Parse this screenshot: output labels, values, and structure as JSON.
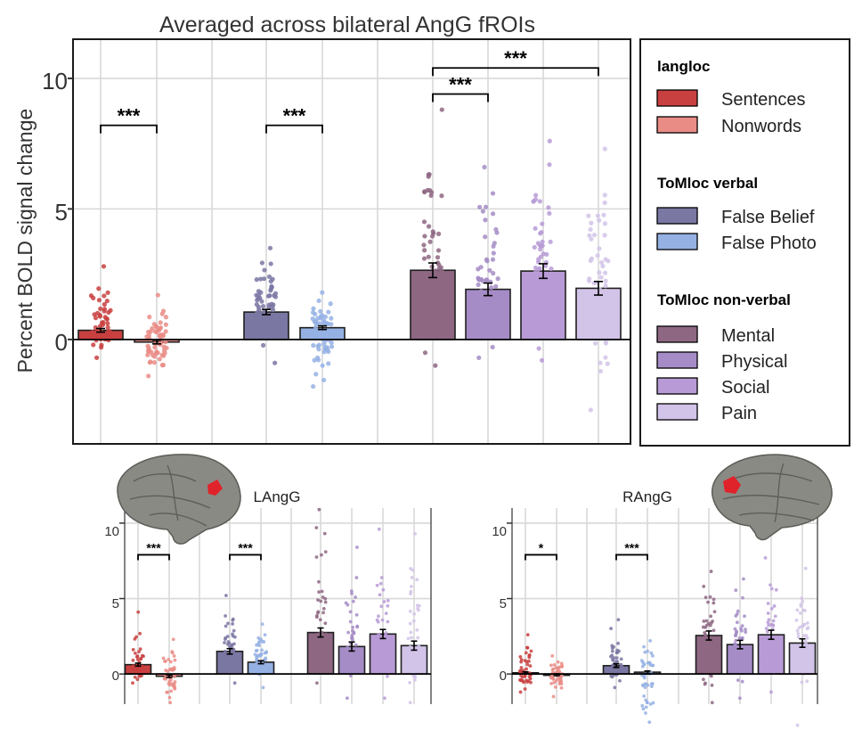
{
  "colors": {
    "Sentences": "#c94040",
    "Nonwords": "#ea8c86",
    "False Belief": "#7a77a3",
    "False Photo": "#95b1e4",
    "Mental": "#8e6783",
    "Physical": "#a58cc6",
    "Social": "#b89bd6",
    "Pain": "#d2c3e8"
  },
  "chart_data": [
    {
      "id": "main",
      "type": "bar",
      "title": "Averaged across bilateral AngG fROIs",
      "ylabel": "Percent BOLD signal change",
      "yticks": [
        "0",
        "5",
        "10"
      ],
      "ylim": [
        -4,
        11.5
      ],
      "categories": [
        "Sentences",
        "Nonwords",
        "False Belief",
        "False Photo",
        "Mental",
        "Physical",
        "Social",
        "Pain"
      ],
      "values": [
        0.35,
        -0.1,
        1.05,
        0.45,
        2.65,
        1.92,
        2.62,
        1.96
      ],
      "errors": [
        0.07,
        0.07,
        0.1,
        0.07,
        0.28,
        0.24,
        0.28,
        0.26
      ],
      "point_ranges": [
        [
          -0.7,
          2.8
        ],
        [
          -1.4,
          1.7
        ],
        [
          -0.9,
          3.5
        ],
        [
          -1.8,
          1.8
        ],
        [
          -1.0,
          8.8
        ],
        [
          -0.7,
          6.6
        ],
        [
          -0.8,
          7.6
        ],
        [
          -2.7,
          7.3
        ]
      ],
      "significance": [
        {
          "from": 0,
          "to": 1,
          "label": "***",
          "y": 8.2
        },
        {
          "from": 2,
          "to": 3,
          "label": "***",
          "y": 8.2
        },
        {
          "from": 4,
          "to": 5,
          "label": "***",
          "y": 9.4
        },
        {
          "from": 4,
          "to": 7,
          "label": "***",
          "y": 10.4
        }
      ],
      "grid": true
    },
    {
      "id": "left",
      "type": "bar",
      "title": "LAngG",
      "yticks": [
        "0",
        "5",
        "10"
      ],
      "ylim": [
        -2,
        11
      ],
      "categories": [
        "Sentences",
        "Nonwords",
        "False Belief",
        "False Photo",
        "Mental",
        "Physical",
        "Social",
        "Pain"
      ],
      "values": [
        0.62,
        -0.15,
        1.5,
        0.78,
        2.75,
        1.82,
        2.65,
        1.88
      ],
      "errors": [
        0.1,
        0.08,
        0.18,
        0.1,
        0.3,
        0.3,
        0.3,
        0.3
      ],
      "point_ranges": [
        [
          -0.6,
          4.1
        ],
        [
          -1.9,
          2.3
        ],
        [
          -0.6,
          5.2
        ],
        [
          -0.9,
          3.3
        ],
        [
          -0.6,
          10.9
        ],
        [
          -1.6,
          8.4
        ],
        [
          -1.6,
          9.6
        ],
        [
          -1.9,
          9.3
        ]
      ],
      "significance": [
        {
          "from": 0,
          "to": 1,
          "label": "***",
          "y": 7.9
        },
        {
          "from": 2,
          "to": 3,
          "label": "***",
          "y": 7.9
        }
      ],
      "grid": true
    },
    {
      "id": "right",
      "type": "bar",
      "title": "RAngG",
      "yticks": [
        "0",
        "5",
        "10"
      ],
      "ylim": [
        -2,
        11
      ],
      "categories": [
        "Sentences",
        "Nonwords",
        "False Belief",
        "False Photo",
        "Mental",
        "Physical",
        "Social",
        "Pain"
      ],
      "values": [
        0.08,
        -0.05,
        0.55,
        0.12,
        2.55,
        1.95,
        2.6,
        2.05
      ],
      "errors": [
        0.06,
        0.06,
        0.12,
        0.08,
        0.3,
        0.28,
        0.3,
        0.28
      ],
      "point_ranges": [
        [
          -1.2,
          2.6
        ],
        [
          -1.5,
          1.2
        ],
        [
          -0.9,
          3.6
        ],
        [
          -3.2,
          2.2
        ],
        [
          -1.9,
          6.8
        ],
        [
          -1.6,
          6.3
        ],
        [
          -1.2,
          7.7
        ],
        [
          -3.4,
          7.0
        ]
      ],
      "significance": [
        {
          "from": 0,
          "to": 1,
          "label": "*",
          "y": 7.9
        },
        {
          "from": 2,
          "to": 3,
          "label": "***",
          "y": 7.9
        }
      ],
      "grid": true
    }
  ],
  "legend": {
    "groups": [
      {
        "title": "langloc",
        "items": [
          "Sentences",
          "Nonwords"
        ]
      },
      {
        "title": "ToMloc verbal",
        "items": [
          "False Belief",
          "False Photo"
        ]
      },
      {
        "title": "ToMloc non-verbal",
        "items": [
          "Mental",
          "Physical",
          "Social",
          "Pain"
        ]
      }
    ]
  }
}
